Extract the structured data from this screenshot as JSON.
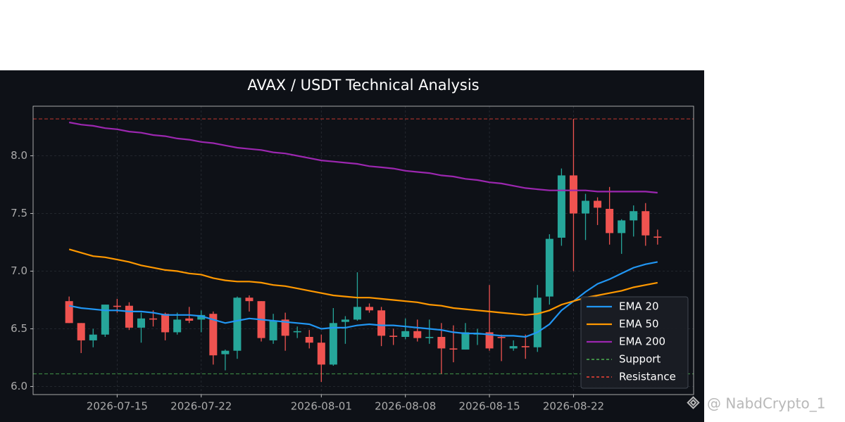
{
  "chart_data": {
    "type": "candlestick",
    "title": "AVAX / USDT Technical Analysis",
    "x": [
      "2026-07-11",
      "2026-07-12",
      "2026-07-13",
      "2026-07-14",
      "2026-07-15",
      "2026-07-16",
      "2026-07-17",
      "2026-07-18",
      "2026-07-19",
      "2026-07-20",
      "2026-07-21",
      "2026-07-22",
      "2026-07-23",
      "2026-07-24",
      "2026-07-25",
      "2026-07-26",
      "2026-07-27",
      "2026-07-28",
      "2026-07-29",
      "2026-07-30",
      "2026-07-31",
      "2026-08-01",
      "2026-08-02",
      "2026-08-03",
      "2026-08-04",
      "2026-08-05",
      "2026-08-06",
      "2026-08-07",
      "2026-08-08",
      "2026-08-09",
      "2026-08-10",
      "2026-08-11",
      "2026-08-12",
      "2026-08-13",
      "2026-08-14",
      "2026-08-15",
      "2026-08-16",
      "2026-08-17",
      "2026-08-18",
      "2026-08-19",
      "2026-08-20",
      "2026-08-21",
      "2026-08-22",
      "2026-08-23",
      "2026-08-24",
      "2026-08-25",
      "2026-08-26",
      "2026-08-27",
      "2026-08-28",
      "2026-08-29"
    ],
    "open": [
      6.74,
      6.55,
      6.4,
      6.45,
      6.7,
      6.7,
      6.51,
      6.59,
      6.63,
      6.47,
      6.59,
      6.58,
      6.63,
      6.28,
      6.31,
      6.77,
      6.74,
      6.4,
      6.58,
      6.47,
      6.43,
      6.38,
      6.19,
      6.56,
      6.58,
      6.69,
      6.66,
      6.44,
      6.43,
      6.48,
      6.42,
      6.43,
      6.33,
      6.32,
      6.45,
      6.47,
      6.43,
      6.33,
      6.35,
      6.34,
      6.78,
      7.29,
      7.83,
      7.5,
      7.61,
      7.54,
      7.33,
      7.44,
      7.52,
      7.3
    ],
    "high": [
      6.78,
      6.55,
      6.5,
      6.71,
      6.76,
      6.73,
      6.64,
      6.66,
      6.64,
      6.64,
      6.69,
      6.66,
      6.65,
      6.32,
      6.78,
      6.79,
      6.74,
      6.63,
      6.64,
      6.52,
      6.49,
      6.45,
      6.68,
      6.61,
      6.99,
      6.72,
      6.69,
      6.5,
      6.59,
      6.58,
      6.58,
      6.55,
      6.53,
      6.55,
      6.5,
      6.88,
      6.45,
      6.4,
      6.45,
      6.88,
      7.32,
      7.89,
      8.32,
      7.67,
      7.64,
      7.73,
      7.45,
      7.57,
      7.59,
      7.36
    ],
    "low": [
      6.55,
      6.29,
      6.34,
      6.43,
      6.64,
      6.49,
      6.38,
      6.52,
      6.4,
      6.45,
      6.55,
      6.47,
      6.19,
      6.14,
      6.24,
      6.65,
      6.39,
      6.37,
      6.31,
      6.42,
      6.33,
      6.04,
      6.18,
      6.37,
      6.57,
      6.64,
      6.35,
      6.36,
      6.41,
      6.39,
      6.37,
      6.11,
      6.21,
      6.32,
      6.36,
      6.31,
      6.22,
      6.31,
      6.24,
      6.3,
      6.71,
      7.22,
      7.0,
      7.27,
      7.4,
      7.23,
      7.15,
      7.3,
      7.22,
      7.23
    ],
    "close": [
      6.55,
      6.4,
      6.45,
      6.71,
      6.69,
      6.51,
      6.59,
      6.58,
      6.47,
      6.58,
      6.57,
      6.62,
      6.27,
      6.31,
      6.77,
      6.74,
      6.42,
      6.57,
      6.44,
      6.48,
      6.38,
      6.19,
      6.55,
      6.58,
      6.69,
      6.66,
      6.44,
      6.43,
      6.48,
      6.42,
      6.43,
      6.33,
      6.32,
      6.47,
      6.46,
      6.33,
      6.42,
      6.35,
      6.34,
      6.77,
      7.28,
      7.83,
      7.5,
      7.61,
      7.55,
      7.33,
      7.44,
      7.52,
      7.31,
      7.29
    ],
    "up_color": "#26a69a",
    "down_color": "#ef5350",
    "lines": [
      {
        "name": "EMA 20",
        "color": "#2196f3",
        "values": [
          6.7,
          6.68,
          6.67,
          6.66,
          6.66,
          6.65,
          6.65,
          6.64,
          6.62,
          6.62,
          6.62,
          6.61,
          6.58,
          6.55,
          6.57,
          6.59,
          6.58,
          6.57,
          6.56,
          6.55,
          6.54,
          6.5,
          6.51,
          6.51,
          6.53,
          6.54,
          6.53,
          6.53,
          6.52,
          6.51,
          6.5,
          6.49,
          6.47,
          6.46,
          6.46,
          6.45,
          6.44,
          6.44,
          6.43,
          6.47,
          6.54,
          6.66,
          6.74,
          6.82,
          6.89,
          6.93,
          6.98,
          7.03,
          7.06,
          7.08
        ]
      },
      {
        "name": "EMA 50",
        "color": "#ff9800",
        "values": [
          7.19,
          7.16,
          7.13,
          7.12,
          7.1,
          7.08,
          7.05,
          7.03,
          7.01,
          7.0,
          6.98,
          6.97,
          6.94,
          6.92,
          6.91,
          6.91,
          6.9,
          6.88,
          6.87,
          6.85,
          6.83,
          6.81,
          6.79,
          6.78,
          6.77,
          6.77,
          6.76,
          6.75,
          6.74,
          6.73,
          6.71,
          6.7,
          6.68,
          6.67,
          6.66,
          6.65,
          6.64,
          6.63,
          6.62,
          6.63,
          6.66,
          6.71,
          6.74,
          6.77,
          6.79,
          6.81,
          6.83,
          6.86,
          6.88,
          6.9
        ]
      },
      {
        "name": "EMA 200",
        "color": "#9c27b0",
        "values": [
          8.29,
          8.27,
          8.26,
          8.24,
          8.23,
          8.21,
          8.2,
          8.18,
          8.17,
          8.15,
          8.14,
          8.12,
          8.11,
          8.09,
          8.07,
          8.06,
          8.05,
          8.03,
          8.02,
          8.0,
          7.98,
          7.96,
          7.95,
          7.94,
          7.93,
          7.91,
          7.9,
          7.89,
          7.87,
          7.86,
          7.85,
          7.83,
          7.82,
          7.8,
          7.79,
          7.77,
          7.76,
          7.74,
          7.72,
          7.71,
          7.7,
          7.7,
          7.7,
          7.7,
          7.69,
          7.69,
          7.69,
          7.69,
          7.69,
          7.68
        ]
      }
    ],
    "hlines": [
      {
        "name": "Support",
        "color": "#4caf50",
        "value": 6.11
      },
      {
        "name": "Resistance",
        "color": "#f44336",
        "value": 8.32
      }
    ],
    "xlim": [
      "2026-07-08",
      "2026-09-01"
    ],
    "xticks": [
      "2026-07-15",
      "2026-07-22",
      "2026-08-01",
      "2026-08-08",
      "2026-08-15",
      "2026-08-22"
    ],
    "ylim": [
      5.93,
      8.43
    ],
    "yticks": [
      {
        "value": 6,
        "label": "6.0"
      },
      6.5,
      {
        "value": 7,
        "label": "7.0"
      },
      7.5,
      {
        "value": 8,
        "label": "8.0"
      }
    ],
    "grid": true,
    "legend": "lower right",
    "watermark": "@ NabdCrypto_1"
  }
}
